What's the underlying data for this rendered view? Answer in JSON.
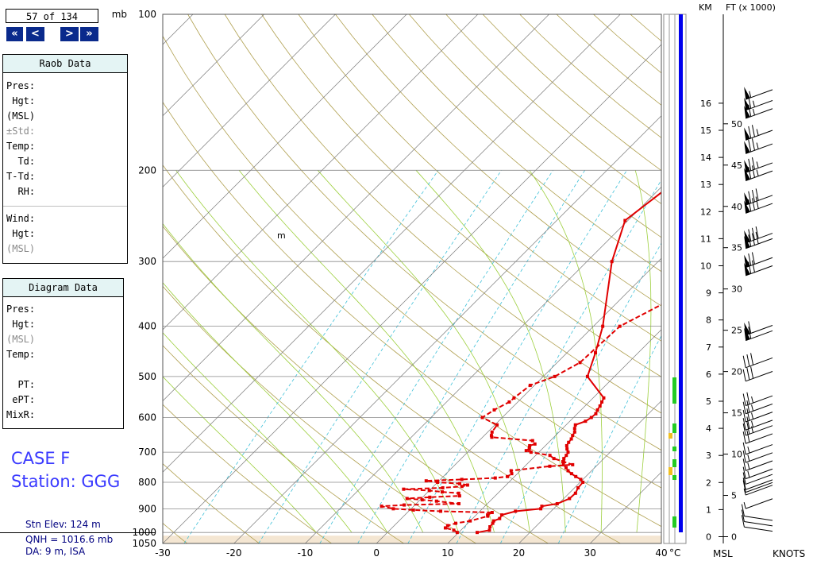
{
  "navigator": {
    "counter": "57 of 134",
    "first_label": "«",
    "prev_label": "<",
    "next_label": ">",
    "last_label": "»"
  },
  "raob_panel": {
    "title": "Raob Data",
    "rows": [
      "Pres:",
      " Hgt:",
      "(MSL)",
      "±Std:",
      "Temp:",
      "  Td:",
      "T-Td:",
      "  RH:"
    ],
    "wind_rows": [
      "Wind:",
      " Hgt:",
      "(MSL)"
    ]
  },
  "diagram_panel": {
    "title": "Diagram Data",
    "rows": [
      "Pres:",
      " Hgt:",
      "(MSL)",
      "Temp:",
      "",
      "  PT:",
      " ePT:",
      "MixR:"
    ]
  },
  "case": {
    "line1": "CASE F",
    "line2": "Station: GGG"
  },
  "station_info": {
    "elev": "Stn Elev: 124 m",
    "qnh": "QNH = 1016.6 mb",
    "da": "DA: 9 m, ISA"
  },
  "chart_data": {
    "type": "skew-t log-p",
    "pressure_unit": "mb",
    "temp_unit": "°C",
    "pressure_ticks": [
      100,
      200,
      300,
      400,
      500,
      600,
      700,
      800,
      900,
      1000,
      1050
    ],
    "temp_ticks": [
      -30,
      -20,
      -10,
      0,
      10,
      20,
      30,
      40
    ],
    "xlim": [
      -30,
      40
    ],
    "plim": [
      1050,
      100
    ],
    "annotation": "m",
    "temperature_profile": [
      [
        1000,
        12.6
      ],
      [
        990,
        14.0
      ],
      [
        975,
        13.6
      ],
      [
        960,
        13.5
      ],
      [
        950,
        13.3
      ],
      [
        940,
        13.8
      ],
      [
        925,
        13.6
      ],
      [
        910,
        15.0
      ],
      [
        900,
        18.2
      ],
      [
        890,
        18.0
      ],
      [
        880,
        19.8
      ],
      [
        860,
        20.8
      ],
      [
        840,
        20.9
      ],
      [
        820,
        20.5
      ],
      [
        800,
        20.4
      ],
      [
        790,
        19.7
      ],
      [
        780,
        18.6
      ],
      [
        770,
        17.6
      ],
      [
        760,
        16.7
      ],
      [
        750,
        16.0
      ],
      [
        740,
        15.2
      ],
      [
        730,
        14.7
      ],
      [
        720,
        14.4
      ],
      [
        710,
        14.3
      ],
      [
        700,
        14.1
      ],
      [
        690,
        13.5
      ],
      [
        680,
        13.0
      ],
      [
        670,
        12.8
      ],
      [
        660,
        12.7
      ],
      [
        650,
        12.4
      ],
      [
        640,
        12.2
      ],
      [
        630,
        11.7
      ],
      [
        620,
        11.3
      ],
      [
        610,
        12.2
      ],
      [
        600,
        12.5
      ],
      [
        590,
        12.6
      ],
      [
        580,
        12.3
      ],
      [
        570,
        12.1
      ],
      [
        560,
        11.8
      ],
      [
        550,
        11.5
      ],
      [
        500,
        6.2
      ],
      [
        450,
        4.0
      ],
      [
        400,
        1.3
      ],
      [
        300,
        -6.5
      ],
      [
        250,
        -10.4
      ],
      [
        200,
        -8.3
      ],
      [
        150,
        -5.5
      ],
      [
        125,
        -4.0
      ],
      [
        100,
        1.0
      ]
    ],
    "dewpoint_profile": [
      [
        1000,
        9.8
      ],
      [
        990,
        9.0
      ],
      [
        980,
        7.5
      ],
      [
        970,
        7.5
      ],
      [
        960,
        8.3
      ],
      [
        950,
        10.0
      ],
      [
        930,
        11.8
      ],
      [
        925,
        11.6
      ],
      [
        915,
        11.9
      ],
      [
        910,
        4.5
      ],
      [
        905,
        0.5
      ],
      [
        900,
        -2.5
      ],
      [
        890,
        -4.5
      ],
      [
        885,
        -1.5
      ],
      [
        880,
        6.0
      ],
      [
        870,
        2.5
      ],
      [
        865,
        0.3
      ],
      [
        860,
        -2.0
      ],
      [
        855,
        1.0
      ],
      [
        850,
        5.0
      ],
      [
        840,
        4.5
      ],
      [
        835,
        2.0
      ],
      [
        830,
        0.0
      ],
      [
        825,
        -3.8
      ],
      [
        820,
        1.5
      ],
      [
        815,
        4.0
      ],
      [
        810,
        4.6
      ],
      [
        805,
        3.3
      ],
      [
        800,
        0.0
      ],
      [
        795,
        -1.8
      ],
      [
        790,
        3.0
      ],
      [
        785,
        7.5
      ],
      [
        780,
        9.0
      ],
      [
        770,
        9.2
      ],
      [
        760,
        8.7
      ],
      [
        745,
        13.5
      ],
      [
        740,
        16.5
      ],
      [
        730,
        14.8
      ],
      [
        720,
        13.0
      ],
      [
        710,
        12.0
      ],
      [
        700,
        8.9
      ],
      [
        695,
        8.0
      ],
      [
        690,
        8.2
      ],
      [
        685,
        8.0
      ],
      [
        680,
        7.8
      ],
      [
        675,
        8.3
      ],
      [
        665,
        7.5
      ],
      [
        655,
        1.3
      ],
      [
        650,
        1.0
      ],
      [
        640,
        0.6
      ],
      [
        620,
        0.3
      ],
      [
        600,
        -2.8
      ],
      [
        580,
        -2.2
      ],
      [
        560,
        -1.2
      ],
      [
        550,
        -1.1
      ],
      [
        520,
        -0.6
      ],
      [
        500,
        1.6
      ],
      [
        470,
        3.2
      ],
      [
        400,
        3.7
      ],
      [
        350,
        7.6
      ],
      [
        300,
        10.0
      ]
    ],
    "height_scale_km": [
      0,
      1,
      2,
      3,
      4,
      5,
      6,
      7,
      8,
      9,
      10,
      11,
      12,
      13,
      14,
      15,
      16
    ],
    "height_scale_kft": [
      0,
      5,
      10,
      15,
      20,
      25,
      30,
      35,
      40,
      45,
      50
    ],
    "height_scale_labels": {
      "km": "KM",
      "ft": "FT (x 1000)",
      "msl": "MSL",
      "knots": "KNOTS"
    },
    "wind_barbs": [
      {
        "alt_km": 0.2,
        "speed_kt": 10
      },
      {
        "alt_km": 0.4,
        "speed_kt": 10
      },
      {
        "alt_km": 0.6,
        "speed_kt": 10
      },
      {
        "alt_km": 1.4,
        "speed_kt": 5
      },
      {
        "alt_km": 1.9,
        "speed_kt": 5
      },
      {
        "alt_km": 2.0,
        "speed_kt": 10
      },
      {
        "alt_km": 2.1,
        "speed_kt": 10
      },
      {
        "alt_km": 2.3,
        "speed_kt": 10
      },
      {
        "alt_km": 2.5,
        "speed_kt": 15
      },
      {
        "alt_km": 2.8,
        "speed_kt": 15
      },
      {
        "alt_km": 3.1,
        "speed_kt": 15
      },
      {
        "alt_km": 3.4,
        "speed_kt": 15
      },
      {
        "alt_km": 3.8,
        "speed_kt": 20
      },
      {
        "alt_km": 4.1,
        "speed_kt": 25
      },
      {
        "alt_km": 4.3,
        "speed_kt": 25
      },
      {
        "alt_km": 4.6,
        "speed_kt": 25
      },
      {
        "alt_km": 4.9,
        "speed_kt": 25
      },
      {
        "alt_km": 5.2,
        "speed_kt": 25
      },
      {
        "alt_km": 6.1,
        "speed_kt": 30
      },
      {
        "alt_km": 6.6,
        "speed_kt": 30
      },
      {
        "alt_km": 7.6,
        "speed_kt": 60
      },
      {
        "alt_km": 7.8,
        "speed_kt": 60
      },
      {
        "alt_km": 10.0,
        "speed_kt": 70
      },
      {
        "alt_km": 10.3,
        "speed_kt": 70
      },
      {
        "alt_km": 11.0,
        "speed_kt": 80
      },
      {
        "alt_km": 11.2,
        "speed_kt": 80
      },
      {
        "alt_km": 12.3,
        "speed_kt": 80
      },
      {
        "alt_km": 12.6,
        "speed_kt": 80
      },
      {
        "alt_km": 13.5,
        "speed_kt": 75
      },
      {
        "alt_km": 13.8,
        "speed_kt": 75
      },
      {
        "alt_km": 14.5,
        "speed_kt": 75
      },
      {
        "alt_km": 15.0,
        "speed_kt": 75
      },
      {
        "alt_km": 15.8,
        "speed_kt": 65
      },
      {
        "alt_km": 16.1,
        "speed_kt": 65
      },
      {
        "alt_km": 16.5,
        "speed_kt": 55
      }
    ]
  }
}
